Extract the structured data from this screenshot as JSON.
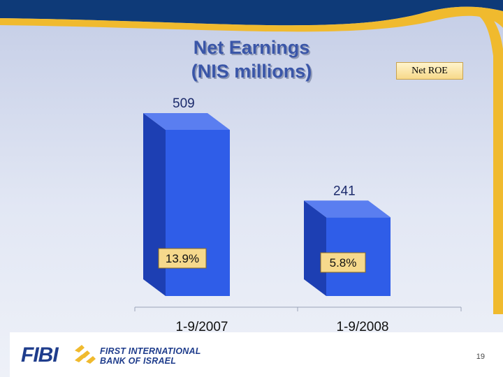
{
  "slide": {
    "title_line1": "Net Earnings",
    "title_line2": "(NIS millions)",
    "legend_label": "Net ROE",
    "page_number": "19"
  },
  "branding": {
    "logo_text": "FIBI",
    "bank_name_line1": "FIRST INTERNATIONAL",
    "bank_name_line2": "BANK OF ISRAEL"
  },
  "colors": {
    "bar_front": "#2f5de8",
    "bar_side": "#1d3fb3",
    "bar_top": "#5a7ef0",
    "label_box": "#f6d98c",
    "title": "#3a56a8",
    "banner_dark": "#0e3a78",
    "banner_gold": "#f0ba2e"
  },
  "chart_data": {
    "type": "bar",
    "title": "Net Earnings (NIS millions)",
    "categories": [
      "1-9/2007",
      "1-9/2008"
    ],
    "series": [
      {
        "name": "Net Earnings",
        "values": [
          509,
          241
        ],
        "value_labels": [
          "509",
          "241"
        ]
      }
    ],
    "roe_labels": [
      "13.9%",
      "5.8%"
    ],
    "ylim": [
      0,
      520
    ],
    "grid": false,
    "legend": "top-right"
  }
}
